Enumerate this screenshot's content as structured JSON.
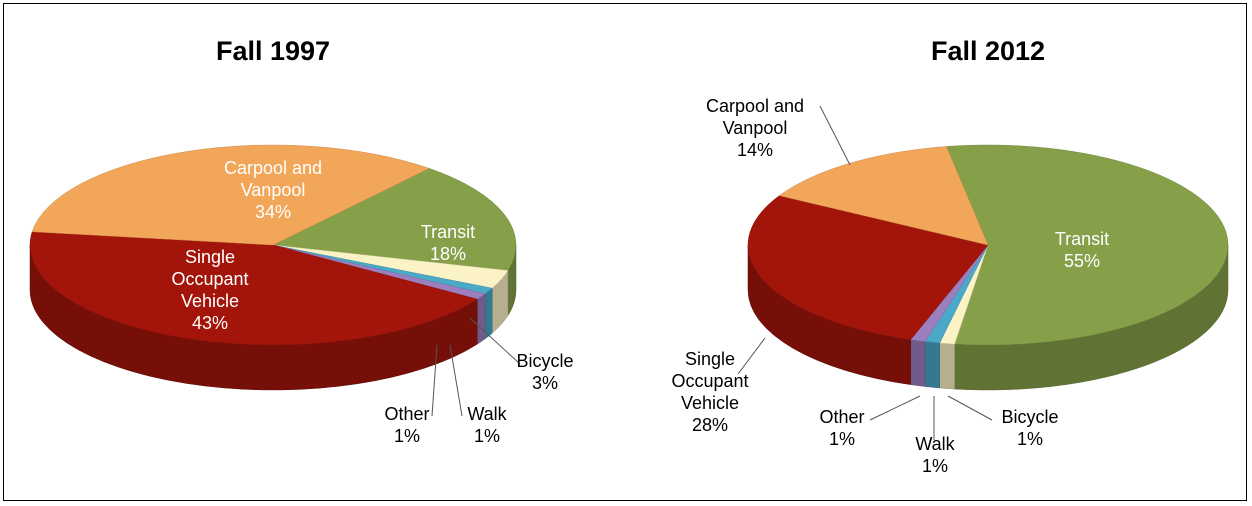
{
  "chart_data": [
    {
      "type": "pie",
      "title": "Fall 1997",
      "categories": [
        "Transit",
        "Bicycle",
        "Walk",
        "Other",
        "Single Occupant Vehicle",
        "Carpool and Vanpool"
      ],
      "values": [
        18,
        3,
        1,
        1,
        43,
        34
      ],
      "value_labels": [
        "18%",
        "3%",
        "1%",
        "1%",
        "43%",
        "34%"
      ],
      "colors": [
        "#86a04a",
        "#fbf3c6",
        "#4aa8c8",
        "#9b7fbf",
        "#a3150a",
        "#f2a65a"
      ]
    },
    {
      "type": "pie",
      "title": "Fall 2012",
      "categories": [
        "Transit",
        "Bicycle",
        "Walk",
        "Other",
        "Single Occupant Vehicle",
        "Carpool and Vanpool"
      ],
      "values": [
        55,
        1,
        1,
        1,
        28,
        14
      ],
      "value_labels": [
        "55%",
        "1%",
        "1%",
        "1%",
        "28%",
        "14%"
      ],
      "colors": [
        "#86a04a",
        "#fbf3c6",
        "#4aa8c8",
        "#9b7fbf",
        "#a3150a",
        "#f2a65a"
      ]
    }
  ]
}
